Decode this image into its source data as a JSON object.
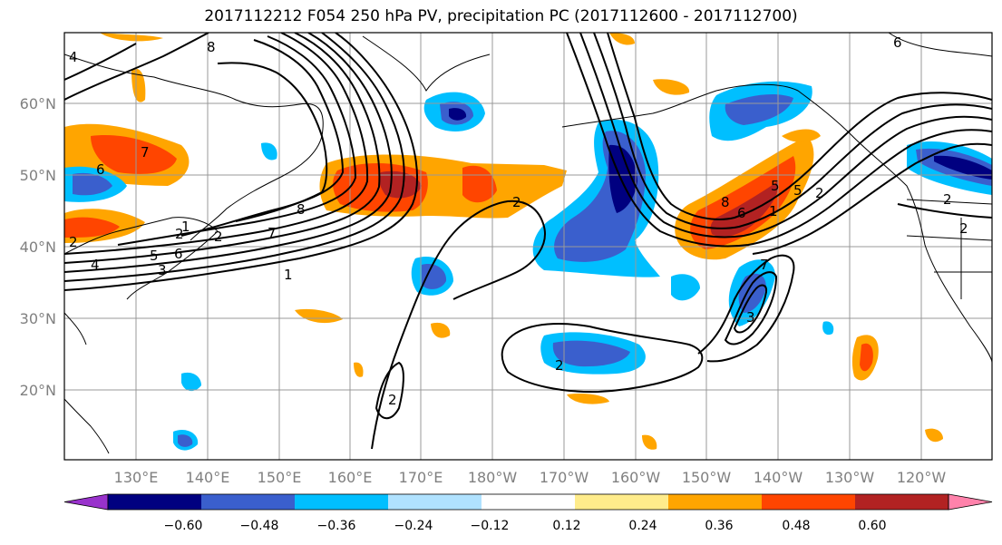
{
  "title": "2017112212 F054 250 hPa PV, precipitation PC (2017112600 - 2017112700)",
  "latitude_labels": [
    "60°N",
    "50°N",
    "40°N",
    "30°N",
    "20°N"
  ],
  "longitude_labels": [
    "130°E",
    "140°E",
    "150°E",
    "160°E",
    "170°E",
    "180°W",
    "170°W",
    "160°W",
    "150°W",
    "140°W",
    "130°W",
    "120°W"
  ],
  "colorbar": {
    "tick_labels": [
      "−0.60",
      "−0.48",
      "−0.36",
      "−0.24",
      "−0.12",
      "0.12",
      "0.24",
      "0.36",
      "0.48",
      "0.60"
    ],
    "colors": [
      "#9932cc",
      "#000080",
      "#3a5fcd",
      "#00bfff",
      "#b0e2ff",
      "#ffffff",
      "#ffec8b",
      "#ffa500",
      "#ff4500",
      "#b22222",
      "#ff82ab"
    ]
  },
  "contour_labels": [
    "8",
    "7",
    "6",
    "5",
    "4",
    "3",
    "2",
    "1",
    "8",
    "7",
    "1",
    "2",
    "6",
    "2",
    "2",
    "2",
    "8",
    "6",
    "1",
    "5",
    "2",
    "2",
    "7",
    "6",
    "5",
    "4",
    "3",
    "2",
    "2"
  ]
}
